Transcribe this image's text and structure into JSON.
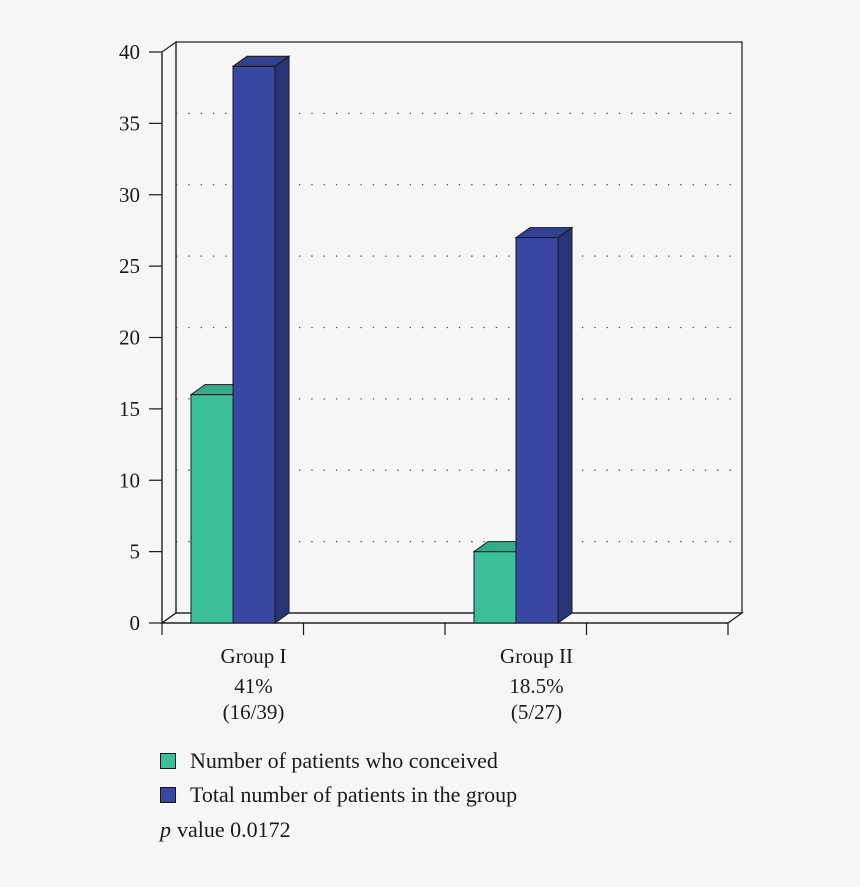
{
  "chart_data": {
    "type": "bar",
    "categories": [
      "Group I",
      "Group II"
    ],
    "category_sublabels": [
      [
        "41%",
        "(16/39)"
      ],
      [
        "18.5%",
        "(5/27)"
      ]
    ],
    "series": [
      {
        "name": "Number of patients who conceived",
        "values": [
          16,
          5
        ],
        "color": "#3bbf98"
      },
      {
        "name": "Total number of patients in the group",
        "values": [
          39,
          27
        ],
        "color": "#3848a2"
      }
    ],
    "ylim": [
      0,
      40
    ],
    "yticks": [
      0,
      5,
      10,
      15,
      20,
      25,
      30,
      35,
      40
    ],
    "grid": "horizontal dotted",
    "style": "3d",
    "legend_position": "bottom-left",
    "annotation": {
      "italic": "p",
      "text": "value 0.0172"
    }
  }
}
